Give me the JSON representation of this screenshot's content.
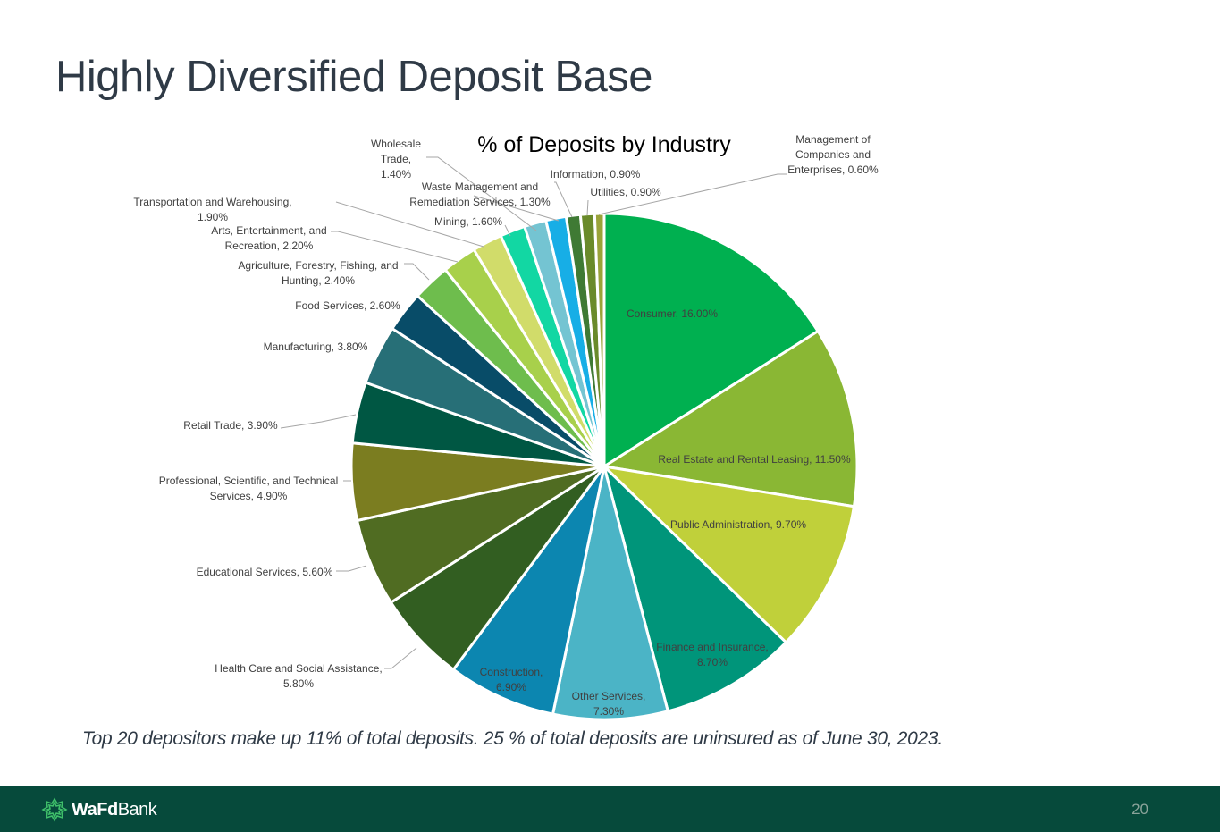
{
  "slide": {
    "title": "Highly Diversified Deposit Base",
    "footnote": "Top 20 depositors make up 11% of total deposits.  25 % of total deposits are uninsured as of June 30, 2023.",
    "page_number": "20"
  },
  "footer": {
    "logo_bold": "WaFd",
    "logo_regular": "Bank",
    "background_color": "#064a3b"
  },
  "chart_data": {
    "type": "pie",
    "title": "% of Deposits by Industry",
    "start_angle_deg": 0,
    "direction": "clockwise",
    "slices": [
      {
        "label": "Consumer, 16.00%",
        "value": 16.0,
        "color": "#00b050"
      },
      {
        "label": "Real Estate and Rental Leasing, 11.50%",
        "value": 11.5,
        "color": "#8ab734"
      },
      {
        "label": "Public Administration, 9.70%",
        "value": 9.7,
        "color": "#c0d03a"
      },
      {
        "label": "Finance and Insurance, 8.70%",
        "value": 8.7,
        "color": "#00957a"
      },
      {
        "label": "Other Services, 7.30%",
        "value": 7.3,
        "color": "#4bb4c6"
      },
      {
        "label": "Construction, 6.90%",
        "value": 6.9,
        "color": "#0c86b0"
      },
      {
        "label": "Health Care and Social Assistance, 5.80%",
        "value": 5.8,
        "color": "#325e21"
      },
      {
        "label": "Educational Services, 5.60%",
        "value": 5.6,
        "color": "#506c22"
      },
      {
        "label": "Professional, Scientific, and Technical Services, 4.90%",
        "value": 4.9,
        "color": "#7b7d20"
      },
      {
        "label": "Retail Trade, 3.90%",
        "value": 3.9,
        "color": "#005743"
      },
      {
        "label": "Manufacturing, 3.80%",
        "value": 3.8,
        "color": "#276f77"
      },
      {
        "label": "Food Services, 2.60%",
        "value": 2.6,
        "color": "#084c68"
      },
      {
        "label": "Agriculture, Forestry, Fishing, and Hunting, 2.40%",
        "value": 2.4,
        "color": "#6ebd4d"
      },
      {
        "label": "Arts, Entertainment, and Recreation, 2.20%",
        "value": 2.2,
        "color": "#a8d04b"
      },
      {
        "label": "Transportation and Warehousing, 1.90%",
        "value": 1.9,
        "color": "#d1dc6a"
      },
      {
        "label": "Mining, 1.60%",
        "value": 1.6,
        "color": "#12d7a3"
      },
      {
        "label": "Wholesale Trade, 1.40%",
        "value": 1.4,
        "color": "#74c4d2"
      },
      {
        "label": "Waste Management and Remediation Services, 1.30%",
        "value": 1.3,
        "color": "#17aee6"
      },
      {
        "label": "Information, 0.90%",
        "value": 0.9,
        "color": "#3f7a34"
      },
      {
        "label": "Utilities, 0.90%",
        "value": 0.9,
        "color": "#6a8a2a"
      },
      {
        "label": "Management of Companies and Enterprises, 0.60%",
        "value": 0.6,
        "color": "#9aa33a"
      }
    ]
  }
}
